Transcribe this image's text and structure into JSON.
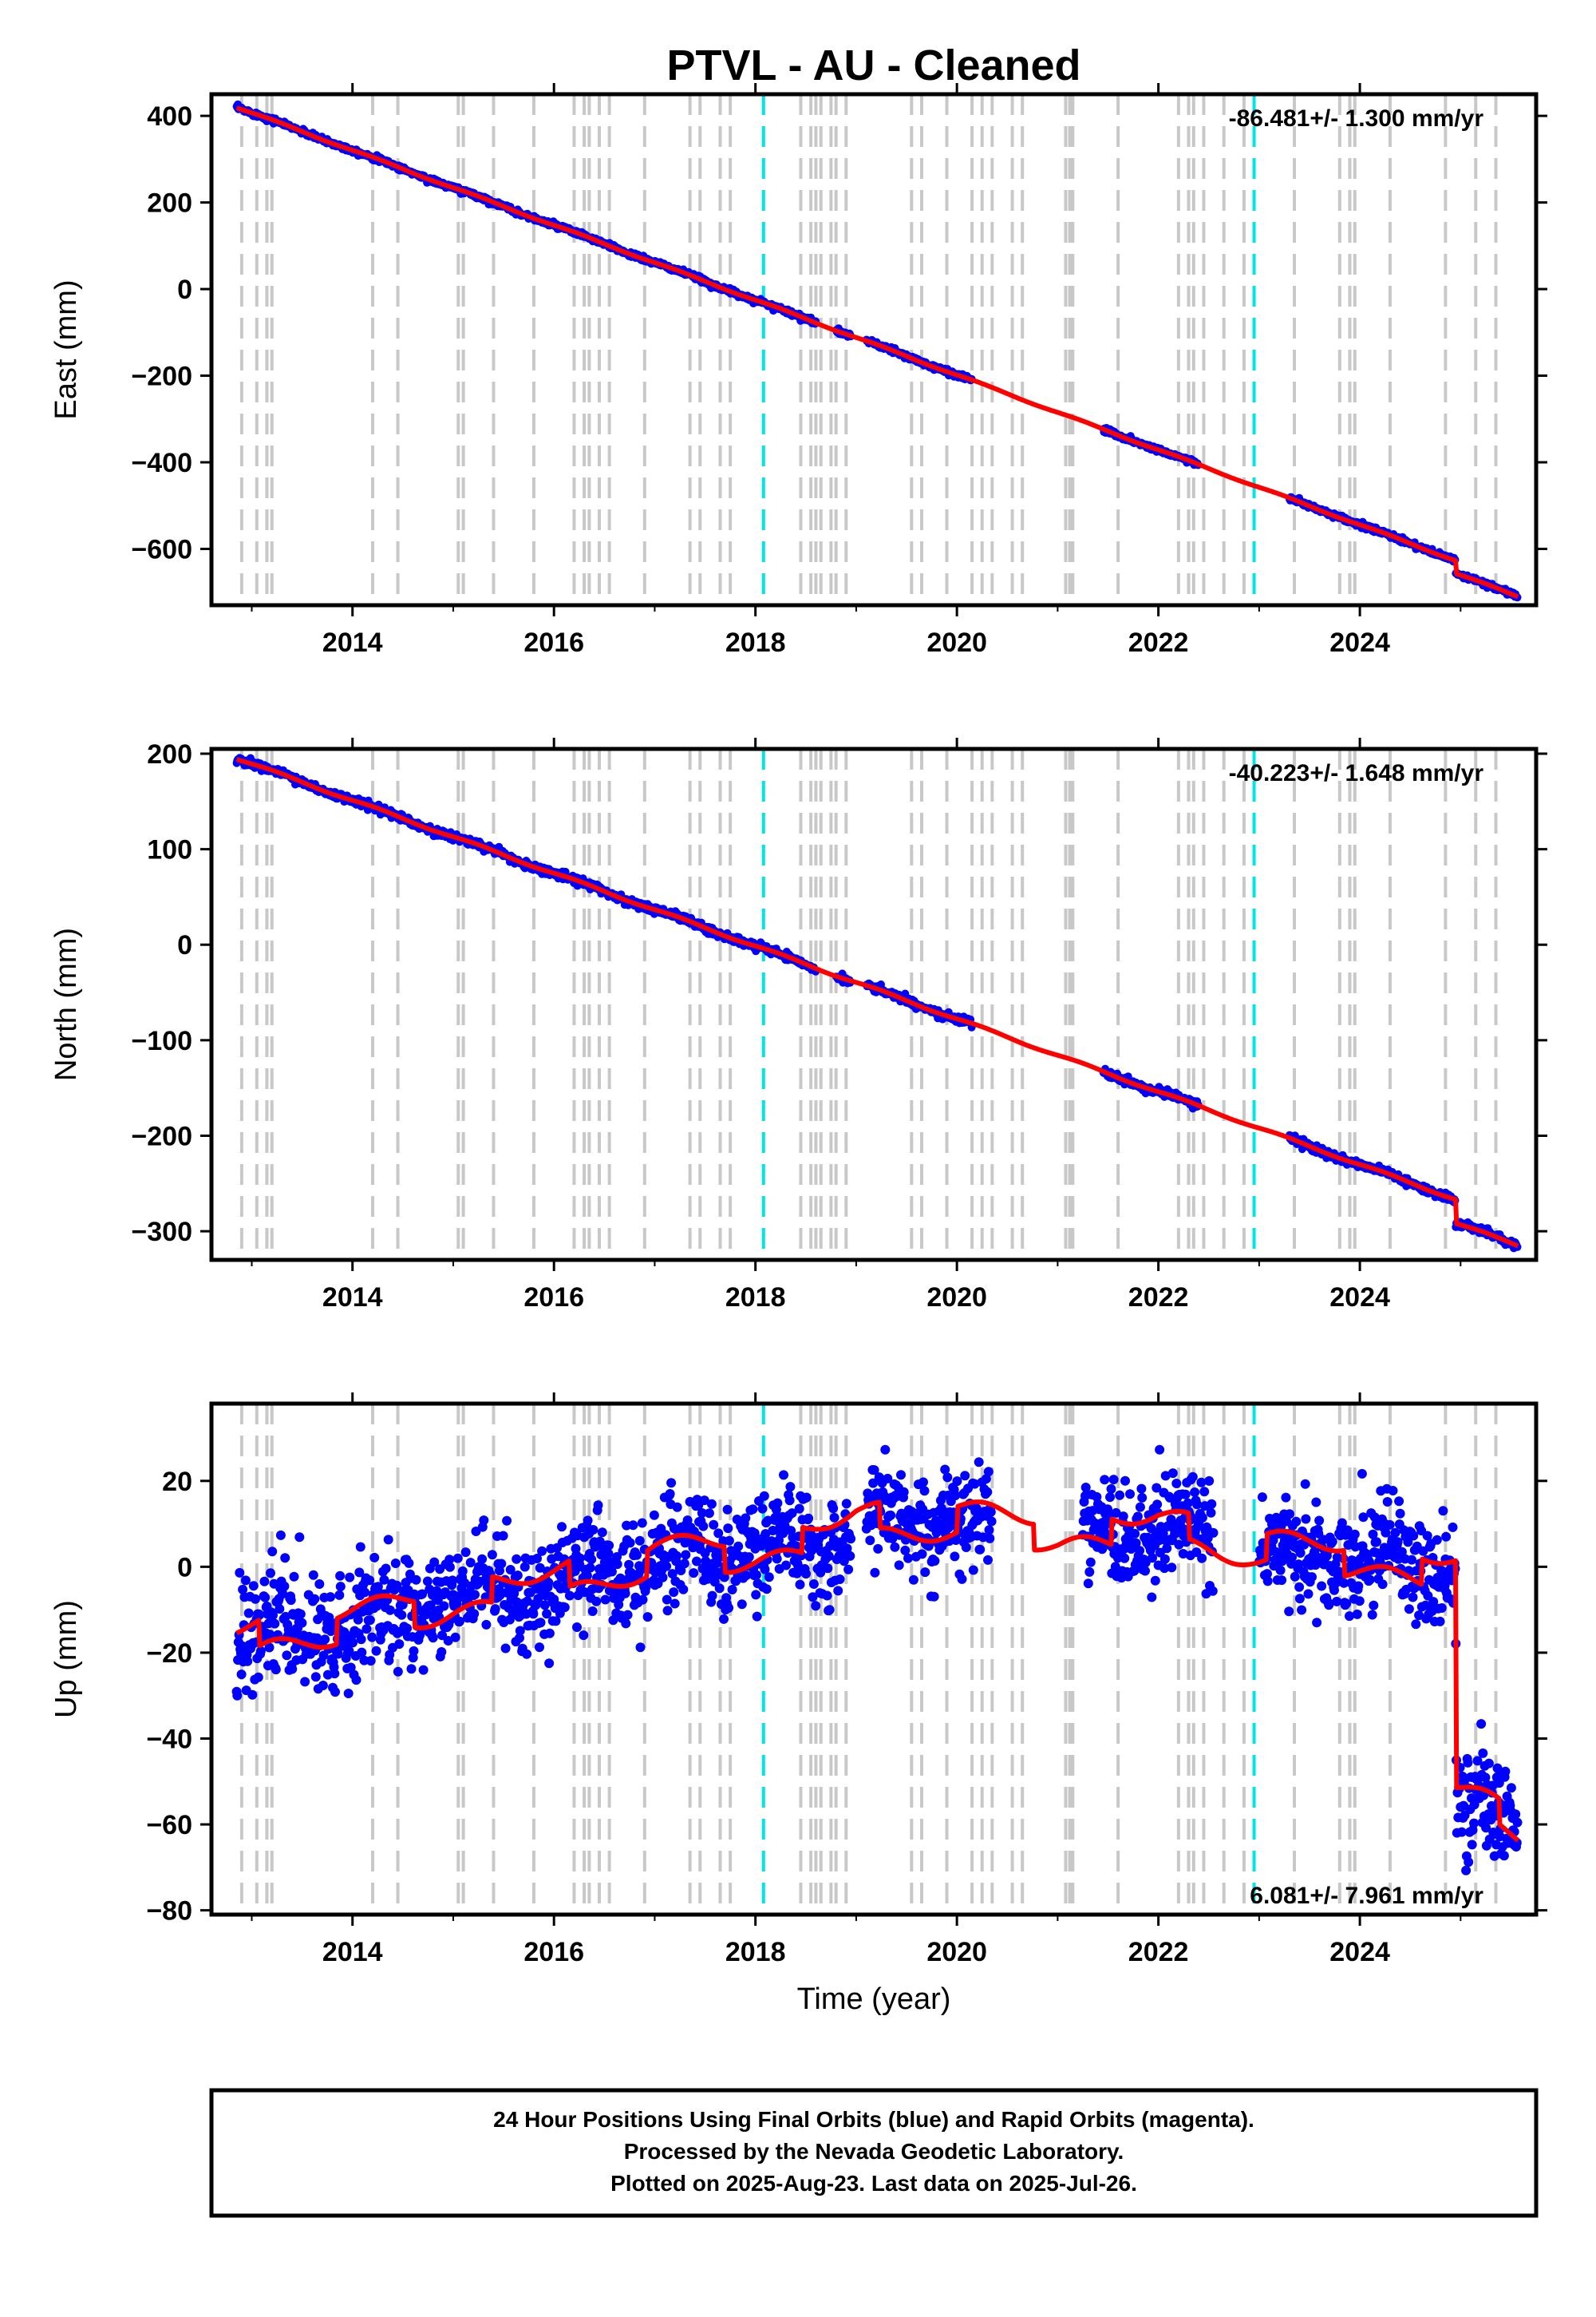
{
  "title": "PTVL  - AU - Cleaned",
  "colors": {
    "final_orbits": "#0000ff",
    "model_fit": "#ff0000",
    "equipment_change_lines": "#c8c8c8",
    "earthquake_lines": "#00e5e5",
    "frame": "#000000"
  },
  "chart_data": [
    {
      "type": "scatter",
      "panel": "east",
      "ylabel": "East (mm)",
      "xlabel": "",
      "xlim": [
        2012.6,
        2025.75
      ],
      "ylim": [
        -730,
        450
      ],
      "x_ticks": [
        2014,
        2016,
        2018,
        2020,
        2022,
        2024
      ],
      "x_tick_labels": [
        "2014",
        "2016",
        "2018",
        "2020",
        "2022",
        "2024"
      ],
      "y_ticks": [
        400,
        200,
        0,
        -200,
        -400,
        -600
      ],
      "y_tick_labels": [
        "400",
        "200",
        "0",
        "−200",
        "−400",
        "−600"
      ],
      "rate_text": "-86.481+/- 1.300 mm/yr",
      "rate_position": "top-right",
      "data_start": 2012.85,
      "data_end": 2025.57,
      "data_gaps": [
        [
          2018.6,
          2018.8
        ],
        [
          2018.95,
          2019.1
        ],
        [
          2020.15,
          2021.45
        ],
        [
          2022.4,
          2023.3
        ]
      ],
      "trend_start": [
        2012.85,
        420
      ],
      "trend_end": [
        2025.57,
        -710
      ],
      "offsets": [
        [
          2024.95,
          -30
        ]
      ],
      "noise_mm": 3,
      "fit_step_mm": 0,
      "fit_wave_mm": 3
    },
    {
      "type": "scatter",
      "panel": "north",
      "ylabel": "North (mm)",
      "xlabel": "",
      "xlim": [
        2012.6,
        2025.75
      ],
      "ylim": [
        -330,
        205
      ],
      "x_ticks": [
        2014,
        2016,
        2018,
        2020,
        2022,
        2024
      ],
      "x_tick_labels": [
        "2014",
        "2016",
        "2018",
        "2020",
        "2022",
        "2024"
      ],
      "y_ticks": [
        200,
        100,
        0,
        -100,
        -200,
        -300
      ],
      "y_tick_labels": [
        "200",
        "100",
        "0",
        "−100",
        "−200",
        "−300"
      ],
      "rate_text": "-40.223+/- 1.648 mm/yr",
      "rate_position": "top-right",
      "data_start": 2012.85,
      "data_end": 2025.57,
      "data_gaps": [
        [
          2018.6,
          2018.8
        ],
        [
          2018.95,
          2019.1
        ],
        [
          2020.15,
          2021.45
        ],
        [
          2022.4,
          2023.3
        ]
      ],
      "trend_start": [
        2012.85,
        195
      ],
      "trend_end": [
        2025.57,
        -315
      ],
      "offsets": [
        [
          2024.95,
          -25
        ]
      ],
      "noise_mm": 2,
      "fit_step_mm": 0,
      "fit_wave_mm": 2
    },
    {
      "type": "scatter",
      "panel": "up",
      "ylabel": "Up (mm)",
      "xlabel": "Time (year)",
      "xlim": [
        2012.6,
        2025.75
      ],
      "ylim": [
        -81,
        38
      ],
      "x_ticks": [
        2014,
        2016,
        2018,
        2020,
        2022,
        2024
      ],
      "x_tick_labels": [
        "2014",
        "2016",
        "2018",
        "2020",
        "2022",
        "2024"
      ],
      "y_ticks": [
        20,
        0,
        -20,
        -40,
        -60,
        -80
      ],
      "y_tick_labels": [
        "20",
        "0",
        "−20",
        "−40",
        "−60",
        "−80"
      ],
      "rate_text": "6.081+/- 7.961 mm/yr",
      "rate_position": "bottom-right",
      "data_start": 2012.85,
      "data_end": 2025.57,
      "data_gaps": [
        [
          2018.95,
          2019.1
        ],
        [
          2020.35,
          2021.25
        ],
        [
          2022.55,
          2023.0
        ]
      ],
      "trend_points": [
        [
          2012.85,
          -17
        ],
        [
          2014.0,
          -13
        ],
        [
          2015.0,
          -8
        ],
        [
          2016.0,
          -4
        ],
        [
          2017.0,
          2
        ],
        [
          2018.0,
          4
        ],
        [
          2018.5,
          6
        ],
        [
          2019.0,
          10
        ],
        [
          2020.0,
          11
        ],
        [
          2021.0,
          8
        ],
        [
          2022.0,
          9
        ],
        [
          2022.5,
          7
        ],
        [
          2023.0,
          4
        ],
        [
          2024.0,
          2
        ],
        [
          2024.95,
          -1
        ],
        [
          2024.96,
          -54
        ],
        [
          2025.57,
          -60
        ]
      ],
      "offsets": [],
      "noise_mm": 6,
      "fit_step_mm": 3,
      "fit_wave_mm": 3
    }
  ],
  "equipment_change_years": [
    2012.9,
    2013.05,
    2013.15,
    2013.2,
    2014.2,
    2014.45,
    2015.05,
    2015.1,
    2015.4,
    2015.8,
    2016.2,
    2016.3,
    2016.35,
    2016.45,
    2016.55,
    2016.9,
    2017.35,
    2017.45,
    2017.65,
    2017.75,
    2018.45,
    2018.55,
    2018.6,
    2018.65,
    2018.75,
    2018.8,
    2018.9,
    2019.55,
    2019.65,
    2019.9,
    2020.15,
    2020.25,
    2020.35,
    2020.55,
    2020.65,
    2021.08,
    2021.12,
    2021.15,
    2021.6,
    2022.2,
    2022.3,
    2022.35,
    2022.45,
    2022.65,
    2022.85,
    2023.35,
    2023.8,
    2023.9,
    2023.95,
    2024.3,
    2024.85,
    2025.15,
    2025.35
  ],
  "earthquake_years": [
    2018.08,
    2022.95
  ],
  "footer": {
    "line1": "24 Hour Positions Using Final Orbits (blue) and Rapid Orbits (magenta).",
    "line2": "Processed by the Nevada Geodetic Laboratory.",
    "line3": "Plotted on 2025-Aug-23. Last data on 2025-Jul-26."
  }
}
